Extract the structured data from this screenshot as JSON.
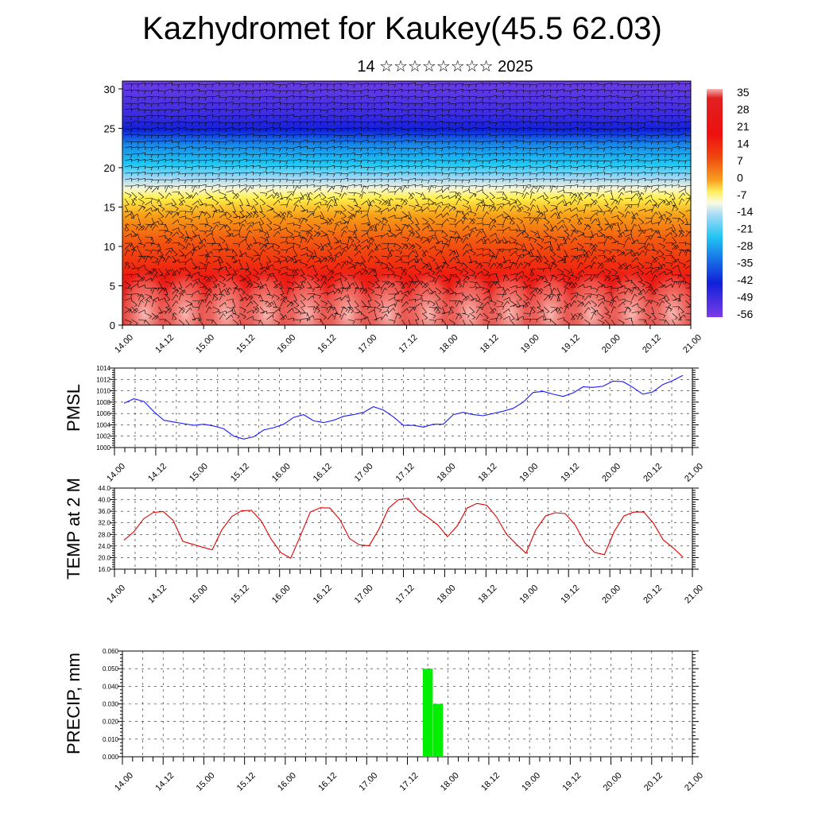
{
  "title": "Kazhydromet for Kaukey(45.5 62.03)",
  "subtitle": "14 ☆☆☆☆☆☆☆☆ 2025",
  "colors": {
    "pmsl_line": "#1a1aff",
    "temp_line": "#e00000",
    "precip_bar": "#00ee00"
  },
  "time_ticks": [
    "14.00",
    "14.12",
    "15.00",
    "15.12",
    "16.00",
    "16.12",
    "17.00",
    "17.12",
    "18.00",
    "18.12",
    "19.00",
    "19.12",
    "20.00",
    "20.12",
    "21.00"
  ],
  "chart_data": [
    {
      "type": "heatmap",
      "ylim": [
        0,
        31
      ],
      "y_ticks": [
        "0",
        "5",
        "10",
        "15",
        "20",
        "25",
        "30"
      ],
      "x_ticks": [
        "14.00",
        "14.12",
        "15.00",
        "15.12",
        "16.00",
        "16.12",
        "17.00",
        "17.12",
        "18.00",
        "18.12",
        "19.00",
        "19.12",
        "20.00",
        "20.12",
        "21.00"
      ],
      "colorbar_labels": [
        "35",
        "28",
        "21",
        "14",
        "7",
        "0",
        "-7",
        "-14",
        "-21",
        "-28",
        "-35",
        "-42",
        "-49",
        "-56"
      ],
      "wind_barbs": true
    },
    {
      "type": "line",
      "ylabel": "PMSL",
      "ylim": [
        1000,
        1014
      ],
      "y_ticks": [
        "1000",
        "1002",
        "1004",
        "1006",
        "1008",
        "1010",
        "1012",
        "1014"
      ],
      "x_ticks": [
        "14.00",
        "14.12",
        "15.00",
        "15.12",
        "16.00",
        "16.12",
        "17.00",
        "17.12",
        "18.00",
        "18.12",
        "19.00",
        "19.12",
        "20.00",
        "20.12",
        "21.00"
      ],
      "grid": true,
      "values": [
        1007.8,
        1008.6,
        1008.1,
        1006.3,
        1004.8,
        1004.5,
        1004.2,
        1003.9,
        1004.1,
        1003.8,
        1003.3,
        1002.0,
        1001.5,
        1001.9,
        1003.1,
        1003.5,
        1004.1,
        1005.3,
        1005.8,
        1004.7,
        1004.4,
        1004.8,
        1005.5,
        1005.8,
        1006.2,
        1007.2,
        1006.6,
        1005.4,
        1003.9,
        1003.9,
        1003.6,
        1004.1,
        1004.1,
        1005.8,
        1006.2,
        1005.8,
        1005.6,
        1006.0,
        1006.4,
        1006.9,
        1008.0,
        1009.7,
        1009.9,
        1009.4,
        1009.0,
        1009.6,
        1010.7,
        1010.6,
        1010.8,
        1011.7,
        1011.6,
        1010.6,
        1009.4,
        1009.8,
        1011.1,
        1011.8,
        1012.7
      ]
    },
    {
      "type": "line",
      "ylabel": "TEMP at 2 M",
      "ylim": [
        16,
        44
      ],
      "y_ticks": [
        "16.0",
        "20.0",
        "24.0",
        "28.0",
        "32.0",
        "36.0",
        "40.0",
        "44.0"
      ],
      "x_ticks": [
        "14.00",
        "14.12",
        "15.00",
        "15.12",
        "16.00",
        "16.12",
        "17.00",
        "17.12",
        "18.00",
        "18.12",
        "19.00",
        "19.12",
        "20.00",
        "20.12",
        "21.00"
      ],
      "grid": true,
      "values": [
        26.0,
        28.9,
        33.4,
        35.6,
        35.9,
        32.9,
        25.6,
        24.6,
        23.6,
        22.7,
        29.7,
        34.2,
        36.2,
        36.3,
        32.6,
        26.4,
        21.7,
        19.8,
        27.6,
        35.7,
        37.2,
        37.1,
        33.2,
        26.6,
        24.4,
        24.1,
        29.8,
        37.1,
        40.0,
        40.5,
        36.2,
        33.9,
        31.3,
        27.2,
        31.0,
        37.1,
        38.7,
        38.1,
        34.0,
        28.1,
        24.7,
        21.5,
        29.6,
        34.4,
        35.5,
        35.2,
        31.4,
        25.1,
        21.8,
        21.0,
        29.0,
        34.4,
        35.7,
        35.8,
        31.9,
        26.1,
        23.4,
        20.2
      ]
    },
    {
      "type": "bar",
      "ylabel": "PRECIP, mm",
      "ylim": [
        0,
        0.06
      ],
      "y_ticks": [
        "0.000",
        "0.010",
        "0.020",
        "0.030",
        "0.040",
        "0.050",
        "0.060"
      ],
      "x_ticks": [
        "14.00",
        "14.12",
        "15.00",
        "15.12",
        "16.00",
        "16.12",
        "17.00",
        "17.12",
        "18.00",
        "18.12",
        "19.00",
        "19.12",
        "20.00",
        "20.12",
        "21.00"
      ],
      "grid": true,
      "bars": [
        {
          "x": "17.18",
          "value": 0.05
        },
        {
          "x": "17.21",
          "value": 0.03
        }
      ]
    }
  ]
}
